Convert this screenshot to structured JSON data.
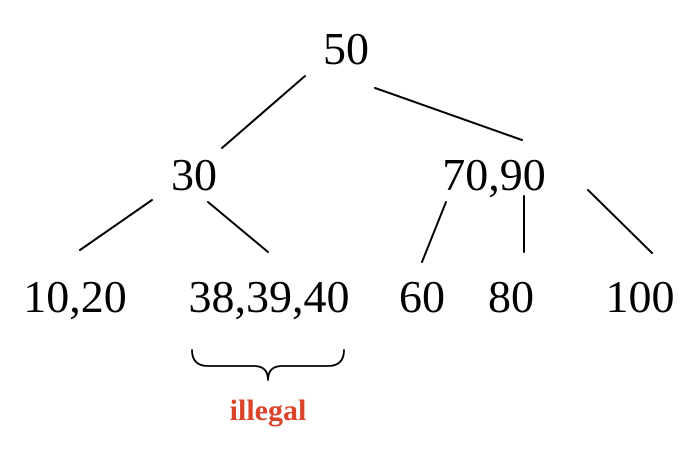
{
  "tree": {
    "root": {
      "label": "50"
    },
    "level1": [
      {
        "label": "30"
      },
      {
        "label": "70,90"
      }
    ],
    "level2": [
      {
        "label": "10,20"
      },
      {
        "label": "38,39,40"
      },
      {
        "label": "60"
      },
      {
        "label": "80"
      },
      {
        "label": "100"
      }
    ]
  },
  "annotation": {
    "label": "illegal",
    "color": "#d9452b"
  }
}
